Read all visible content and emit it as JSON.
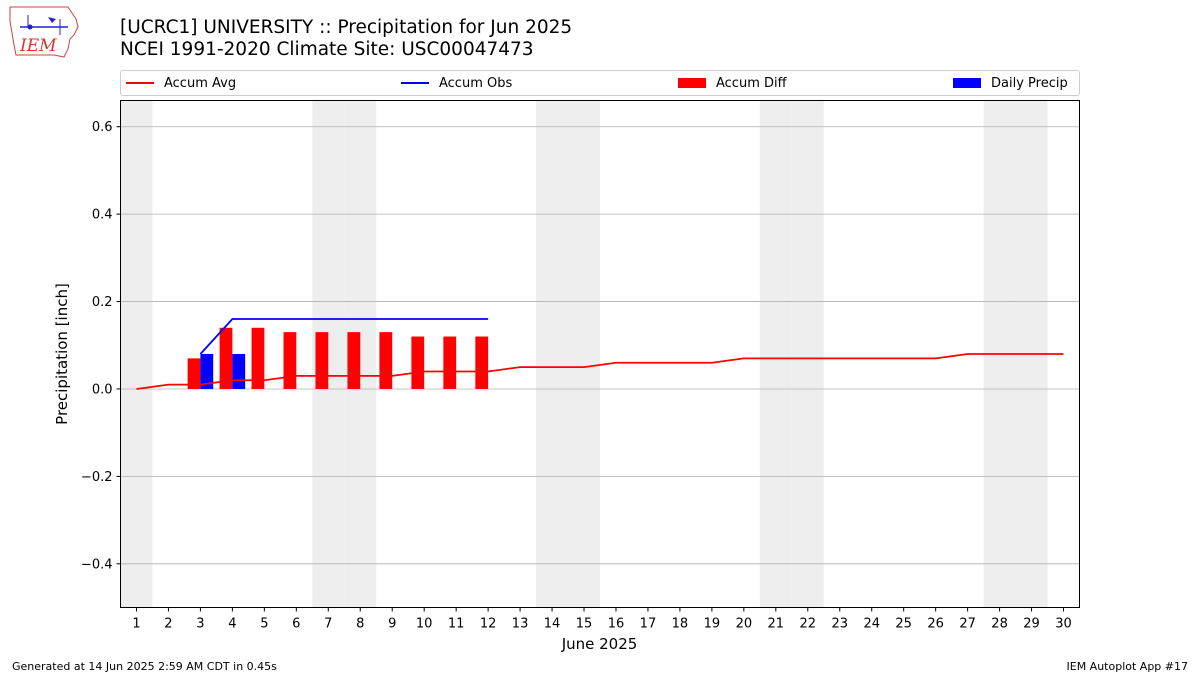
{
  "header": {
    "title_line1": "[UCRC1] UNIVERSITY :: Precipitation for Jun 2025",
    "title_line2": "NCEI 1991-2020 Climate Site: USC00047473"
  },
  "logo": {
    "text": "IEM"
  },
  "footer": {
    "left": "Generated at 14 Jun 2025 2:59 AM CDT in 0.45s",
    "right": "IEM Autoplot App #17"
  },
  "colors": {
    "avg": "#ff0000",
    "obs": "#0000ff",
    "diff": "#ff0000",
    "daily": "#0000ff",
    "weekend": "#eeeeee",
    "grid": "#b0b0b0"
  },
  "legend": {
    "avg": "Accum Avg",
    "obs": "Accum Obs",
    "diff": "Accum Diff",
    "daily": "Daily Precip"
  },
  "chart_data": {
    "type": "bar",
    "xlabel": "June 2025",
    "ylabel": "Precipitation [inch]",
    "xlim": [
      0.5,
      30.5
    ],
    "ylim": [
      -0.5,
      0.66
    ],
    "yticks": [
      -0.4,
      -0.2,
      0.0,
      0.2,
      0.4,
      0.6
    ],
    "ytick_labels": [
      "−0.4",
      "−0.2",
      "0.0",
      "0.2",
      "0.4",
      "0.6"
    ],
    "x_ticks": [
      1,
      2,
      3,
      4,
      5,
      6,
      7,
      8,
      9,
      10,
      11,
      12,
      13,
      14,
      15,
      16,
      17,
      18,
      19,
      20,
      21,
      22,
      23,
      24,
      25,
      26,
      27,
      28,
      29,
      30
    ],
    "grid": "horizontal",
    "legend_position": "top",
    "weekend_days": [
      1,
      7,
      8,
      14,
      15,
      21,
      22,
      28,
      29
    ],
    "accum_avg": {
      "days": [
        1,
        2,
        3,
        4,
        5,
        6,
        7,
        8,
        9,
        10,
        11,
        12,
        13,
        14,
        15,
        16,
        17,
        18,
        19,
        20,
        21,
        22,
        23,
        24,
        25,
        26,
        27,
        28,
        29,
        30
      ],
      "values": [
        0.0,
        0.01,
        0.01,
        0.02,
        0.02,
        0.03,
        0.03,
        0.03,
        0.03,
        0.04,
        0.04,
        0.04,
        0.05,
        0.05,
        0.05,
        0.06,
        0.06,
        0.06,
        0.06,
        0.07,
        0.07,
        0.07,
        0.07,
        0.07,
        0.07,
        0.07,
        0.08,
        0.08,
        0.08,
        0.08
      ]
    },
    "accum_obs": {
      "days": [
        3,
        4,
        5,
        6,
        7,
        8,
        9,
        10,
        11,
        12
      ],
      "values": [
        0.08,
        0.16,
        0.16,
        0.16,
        0.16,
        0.16,
        0.16,
        0.16,
        0.16,
        0.16
      ]
    },
    "accum_diff": {
      "days": [
        3,
        4,
        5,
        6,
        7,
        8,
        9,
        10,
        11,
        12
      ],
      "values": [
        0.07,
        0.14,
        0.14,
        0.13,
        0.13,
        0.13,
        0.13,
        0.12,
        0.12,
        0.12
      ]
    },
    "daily_precip": {
      "days": [
        3,
        4
      ],
      "values": [
        0.08,
        0.08
      ]
    }
  }
}
